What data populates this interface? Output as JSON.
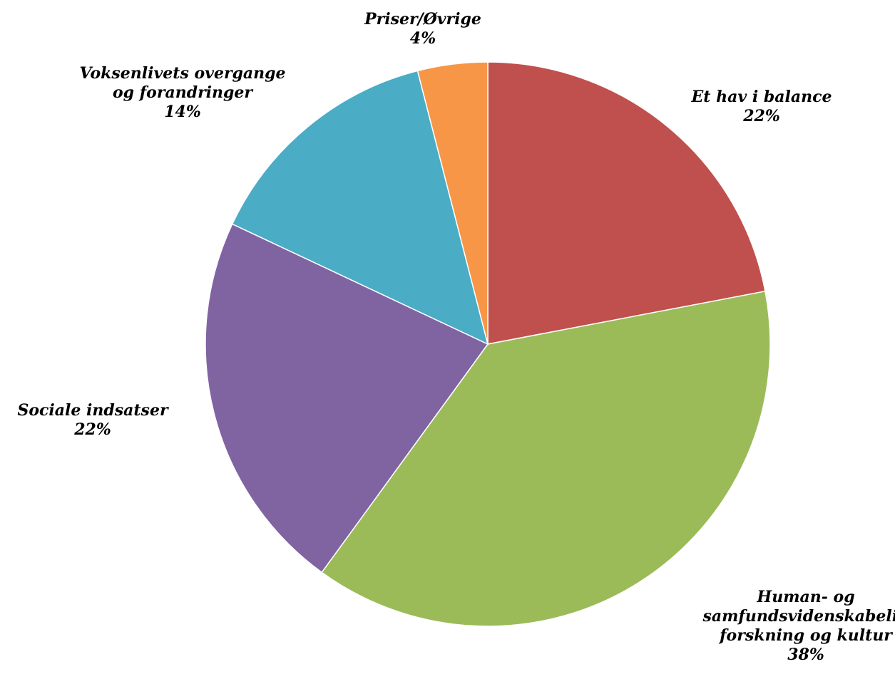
{
  "chart_data": {
    "type": "pie",
    "title": "",
    "slices": [
      {
        "label": [
          "Et hav i balance"
        ],
        "pct_label": "22%",
        "value": 22,
        "color": "#C0504D"
      },
      {
        "label": [
          "Human- og",
          "samfundsvidenskabelig",
          "forskning og kultur"
        ],
        "pct_label": "38%",
        "value": 38,
        "color": "#9BBB59"
      },
      {
        "label": [
          "Sociale indsatser"
        ],
        "pct_label": "22%",
        "value": 22,
        "color": "#8064A2"
      },
      {
        "label": [
          "Voksenlivets overgange",
          "og forandringer"
        ],
        "pct_label": "14%",
        "value": 14,
        "color": "#4BACC6"
      },
      {
        "label": [
          "Priser/Øvrige"
        ],
        "pct_label": "4%",
        "value": 4,
        "color": "#F79646"
      }
    ],
    "start": "12 o'clock",
    "direction": "clockwise",
    "legend": "none",
    "data_labels": "outside, category name and percentage"
  }
}
